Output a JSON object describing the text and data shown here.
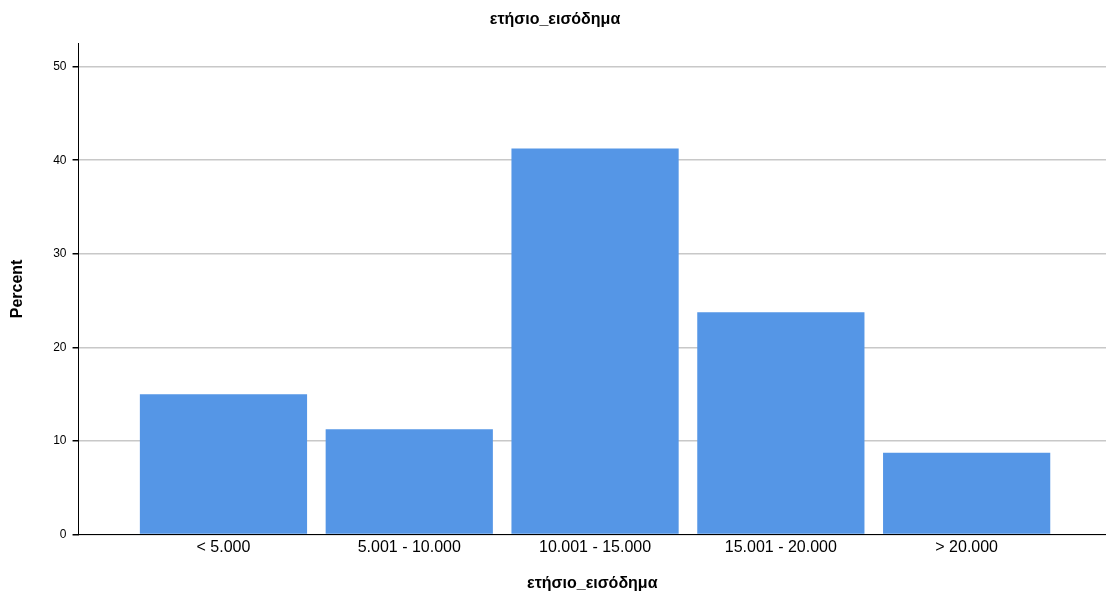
{
  "chart_data": {
    "type": "bar",
    "title": "ετήσιο_εισόδημα",
    "xlabel": "ετήσιο_εισόδημα",
    "ylabel": "Percent",
    "categories": [
      "< 5.000",
      "5.001 - 10.000",
      "10.001 - 15.000",
      "15.001 - 20.000",
      "> 20.000"
    ],
    "values": [
      15,
      11.25,
      41.25,
      23.75,
      8.75
    ],
    "color": "#5596e6",
    "ylim": [
      0,
      52.5
    ],
    "yticks": [
      0,
      10,
      20,
      30,
      40,
      50
    ],
    "grid": "y",
    "legend": false
  }
}
